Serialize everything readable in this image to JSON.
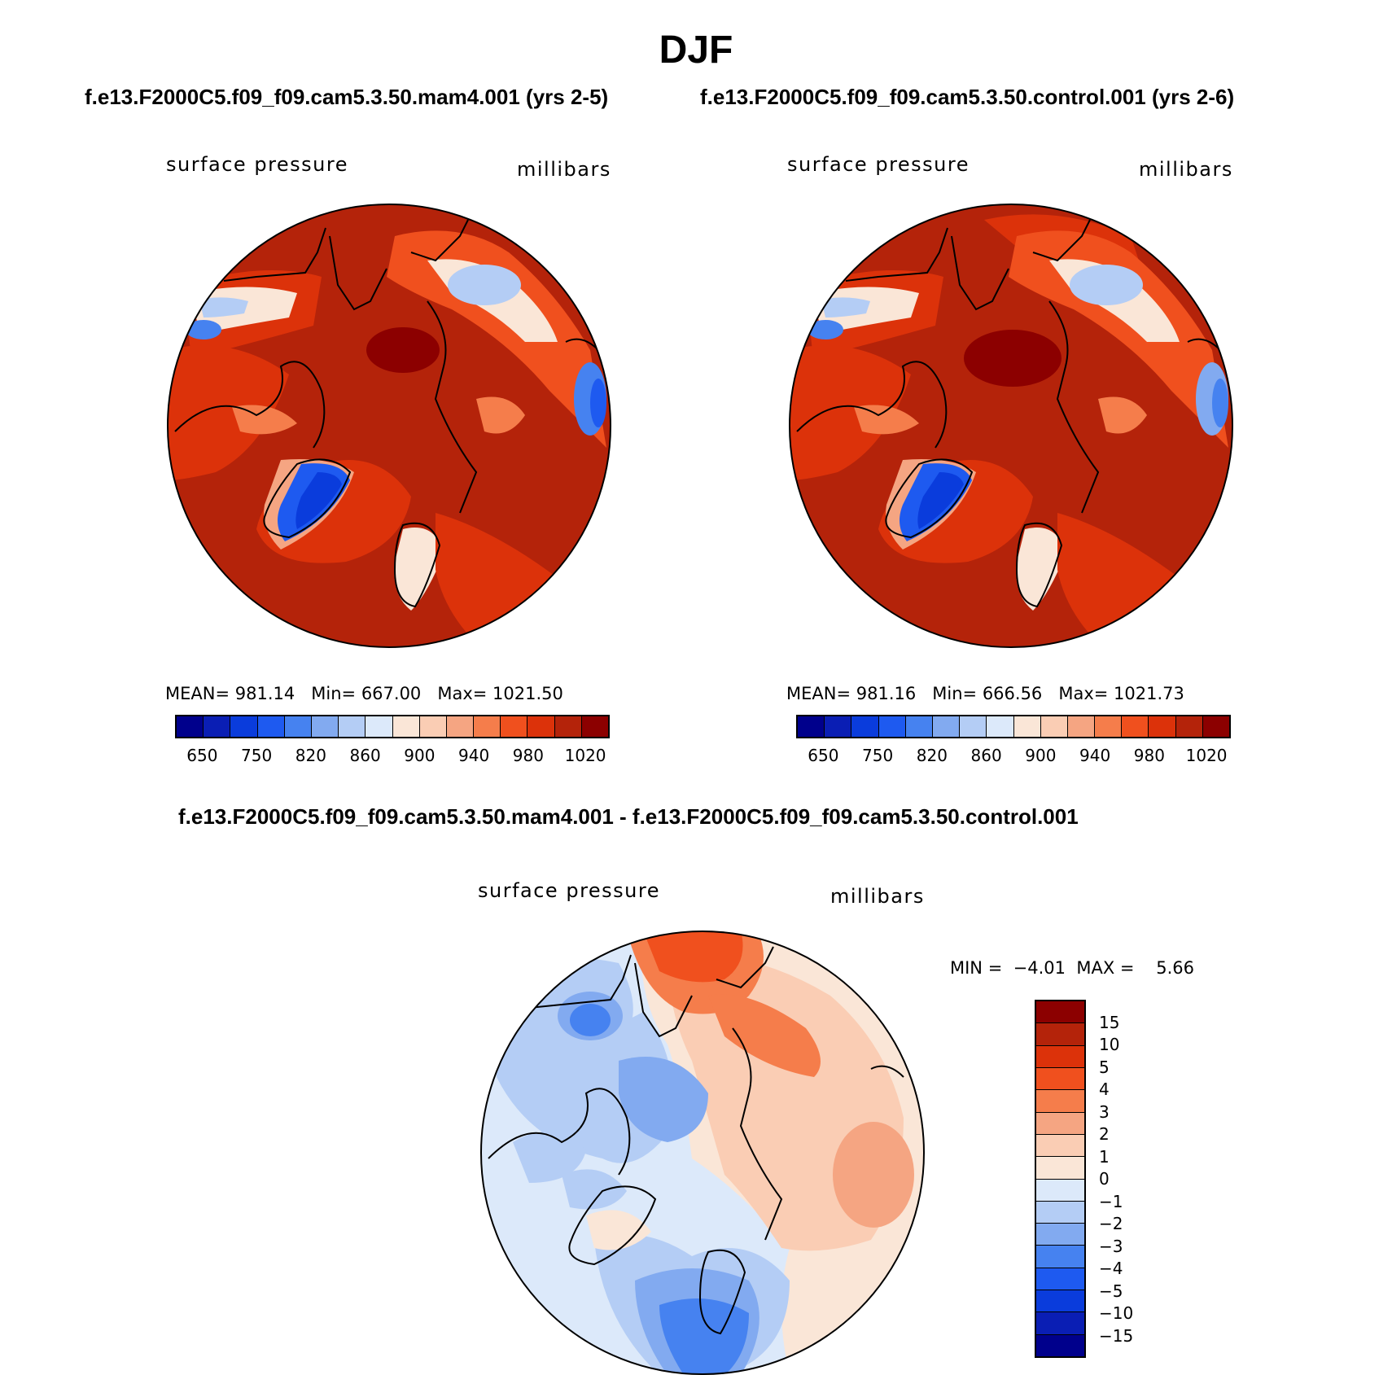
{
  "figure": {
    "title": "DJF",
    "case1_title": "f.e13.F2000C5.f09_f09.cam5.3.50.mam4.001 (yrs 2-5)",
    "case2_title": "f.e13.F2000C5.f09_f09.cam5.3.50.control.001 (yrs 2-6)",
    "diff_title": "f.e13.F2000C5.f09_f09.cam5.3.50.mam4.001 - f.e13.F2000C5.f09_f09.cam5.3.50.control.001"
  },
  "panels": {
    "mam4": {
      "variable": "surface pressure",
      "units": "millibars",
      "mean_label": "MEAN=",
      "mean": "981.14",
      "min_label": "Min=",
      "min": "667.00",
      "max_label": "Max=",
      "max": "1021.50"
    },
    "control": {
      "variable": "surface pressure",
      "units": "millibars",
      "mean_label": "MEAN=",
      "mean": "981.16",
      "min_label": "Min=",
      "min": "666.56",
      "max_label": "Max=",
      "max": "1021.73"
    },
    "diff": {
      "variable": "surface pressure",
      "units": "millibars",
      "min_label": "MIN =",
      "min": "−4.01",
      "max_label": "MAX =",
      "max": "5.66"
    }
  },
  "abs_colorbar": {
    "colors": [
      "#00008c",
      "#0a1eb4",
      "#0a3cdc",
      "#1e5af0",
      "#4682f0",
      "#82aaf0",
      "#b4cdf5",
      "#dce9fa",
      "#fae6d7",
      "#facdb4",
      "#f5a582",
      "#f57d4b",
      "#f0501e",
      "#dc320a",
      "#b4230a",
      "#8c0000"
    ],
    "ticks": [
      "650",
      "750",
      "820",
      "860",
      "900",
      "940",
      "980",
      "1020"
    ]
  },
  "diff_colorbar": {
    "colors": [
      "#8c0000",
      "#b4230a",
      "#dc320a",
      "#f0501e",
      "#f57d4b",
      "#f5a582",
      "#facdb4",
      "#fae6d7",
      "#dce9fa",
      "#b4cdf5",
      "#82aaf0",
      "#4682f0",
      "#1e5af0",
      "#0a3cdc",
      "#0a1eb4",
      "#00008c"
    ],
    "ticks": [
      "15",
      "10",
      "5",
      "4",
      "3",
      "2",
      "1",
      "0",
      "−1",
      "−2",
      "−3",
      "−4",
      "−5",
      "−10",
      "−15"
    ]
  },
  "colors": {
    "abs_background": "#b4230a",
    "abs_mid": "#dc320a",
    "abs_high": "#8c0000",
    "greenland_low": "#1e5af0",
    "diff_background": "#dce9fa",
    "diff_pos": "#facdb4",
    "diff_neg": "#82aaf0"
  }
}
